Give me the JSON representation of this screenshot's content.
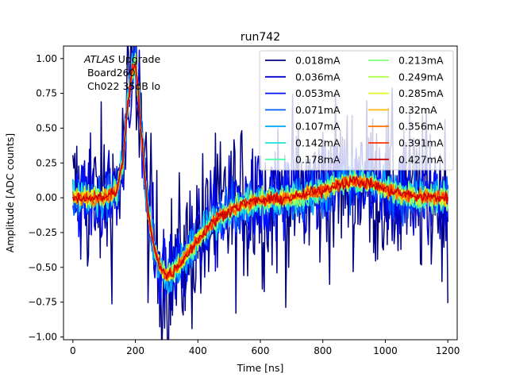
{
  "chart_data": {
    "type": "line",
    "title": "run742",
    "xlabel": "Time [ns]",
    "ylabel": "Amplitude [ADC counts]",
    "xlim": [
      -30,
      1230
    ],
    "ylim": [
      -1.02,
      1.09
    ],
    "xticks": [
      0,
      200,
      400,
      600,
      800,
      1000,
      1200
    ],
    "yticks": [
      -1.0,
      -0.75,
      -0.5,
      -0.25,
      0.0,
      0.25,
      0.5,
      0.75,
      1.0
    ],
    "xtick_labels": [
      "0",
      "200",
      "400",
      "600",
      "800",
      "1000",
      "1200"
    ],
    "ytick_labels": [
      "−1.00",
      "−0.75",
      "−0.50",
      "−0.25",
      "0.00",
      "0.25",
      "0.50",
      "0.75",
      "1.00"
    ],
    "annotation": {
      "italic": "ATLAS",
      "rest": " Upgrade",
      "line2": " Board260",
      "line3": " Ch022 35dB lo"
    },
    "legend_placement": "top-right",
    "legend_columns": 2,
    "pulse_shape": {
      "x": [
        0,
        100,
        140,
        160,
        175,
        190,
        200,
        210,
        225,
        240,
        260,
        280,
        300,
        320,
        350,
        400,
        450,
        500,
        550,
        600,
        700,
        800,
        850,
        900,
        950,
        1000,
        1050,
        1100,
        1200
      ],
      "y": [
        0.0,
        0.0,
        0.05,
        0.25,
        0.65,
        0.92,
        0.95,
        0.75,
        0.3,
        -0.1,
        -0.35,
        -0.5,
        -0.56,
        -0.53,
        -0.45,
        -0.3,
        -0.17,
        -0.09,
        -0.04,
        -0.02,
        0.0,
        0.05,
        0.1,
        0.12,
        0.1,
        0.06,
        0.03,
        0.01,
        0.0
      ]
    },
    "series": [
      {
        "name": "0.018mA",
        "color": "#00007f",
        "noise": 0.3
      },
      {
        "name": "0.036mA",
        "color": "#0000d0",
        "noise": 0.18
      },
      {
        "name": "0.053mA",
        "color": "#0011ff",
        "noise": 0.12
      },
      {
        "name": "0.071mA",
        "color": "#005cff",
        "noise": 0.09
      },
      {
        "name": "0.107mA",
        "color": "#00a8ff",
        "noise": 0.065
      },
      {
        "name": "0.142mA",
        "color": "#1ce2da",
        "noise": 0.055
      },
      {
        "name": "0.178mA",
        "color": "#4dffaa",
        "noise": 0.045
      },
      {
        "name": "0.213mA",
        "color": "#7dff7a",
        "noise": 0.04
      },
      {
        "name": "0.249mA",
        "color": "#adff4a",
        "noise": 0.035
      },
      {
        "name": "0.285mA",
        "color": "#e4f71f",
        "noise": 0.03
      },
      {
        "name": "0.32mA",
        "color": "#ffb900",
        "noise": 0.027
      },
      {
        "name": "0.356mA",
        "color": "#ff7300",
        "noise": 0.025
      },
      {
        "name": "0.391mA",
        "color": "#ff3000",
        "noise": 0.022
      },
      {
        "name": "0.427mA",
        "color": "#cb0000",
        "noise": 0.02
      }
    ]
  }
}
